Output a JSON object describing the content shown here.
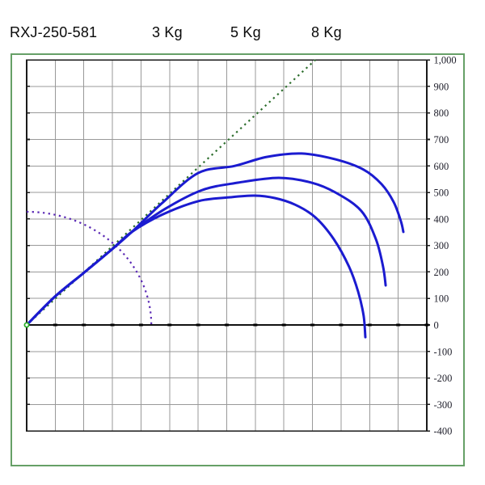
{
  "header": {
    "model": "RXJ-250-581",
    "legend": [
      "3 Kg",
      "5 Kg",
      "8 Kg"
    ]
  },
  "colors": {
    "curve_blue": "#1b1bd0",
    "sight_line_green": "#2d6e2d",
    "range_arc_purple": "#5b2ab5",
    "frame_green": "#66a067",
    "grid_gray": "#999999",
    "axis_dark": "#1a1a1a",
    "origin_marker_green": "#2eaf2e",
    "tick_label": "#1e1e2a"
  },
  "chart_data": {
    "type": "line",
    "title": "RXJ-250-581",
    "xlabel": "",
    "ylabel": "",
    "grid": true,
    "x_axis": {
      "min": 0,
      "max": 14,
      "step": 1,
      "labels_visible": false
    },
    "y_axis": {
      "min": -400,
      "max": 1000,
      "step": 100,
      "side": "right",
      "tick_labels": [
        "1,000",
        "900",
        "800",
        "700",
        "600",
        "500",
        "400",
        "300",
        "200",
        "100",
        "0",
        "-100",
        "-200",
        "-300",
        "-400"
      ]
    },
    "series": [
      {
        "name": "3 Kg",
        "color": "#1b1bd0",
        "points": [
          [
            0,
            0
          ],
          [
            0.99,
            107
          ],
          [
            1.98,
            195
          ],
          [
            2.97,
            284
          ],
          [
            3.68,
            351
          ],
          [
            4.72,
            458
          ],
          [
            6.0,
            573
          ],
          [
            7.27,
            600
          ],
          [
            8.4,
            634
          ],
          [
            9.62,
            647
          ],
          [
            10.8,
            625
          ],
          [
            11.79,
            586
          ],
          [
            12.42,
            531
          ],
          [
            12.84,
            464
          ],
          [
            13.09,
            393
          ],
          [
            13.18,
            351
          ]
        ]
      },
      {
        "name": "5 Kg",
        "color": "#1b1bd0",
        "points": [
          [
            0,
            0
          ],
          [
            0.99,
            107
          ],
          [
            1.98,
            195
          ],
          [
            2.97,
            284
          ],
          [
            3.68,
            351
          ],
          [
            4.86,
            439
          ],
          [
            6.14,
            509
          ],
          [
            7.41,
            537
          ],
          [
            8.82,
            555
          ],
          [
            9.96,
            537
          ],
          [
            10.8,
            500
          ],
          [
            11.71,
            430
          ],
          [
            12.22,
            323
          ],
          [
            12.47,
            220
          ],
          [
            12.56,
            149
          ]
        ]
      },
      {
        "name": "8 Kg",
        "color": "#1b1bd0",
        "points": [
          [
            0,
            0
          ],
          [
            0.99,
            107
          ],
          [
            1.98,
            195
          ],
          [
            2.97,
            284
          ],
          [
            3.68,
            351
          ],
          [
            4.72,
            415
          ],
          [
            6.0,
            467
          ],
          [
            7.13,
            482
          ],
          [
            7.98,
            488
          ],
          [
            8.68,
            479
          ],
          [
            9.39,
            454
          ],
          [
            10.1,
            406
          ],
          [
            10.75,
            323
          ],
          [
            11.28,
            220
          ],
          [
            11.6,
            125
          ],
          [
            11.79,
            34
          ],
          [
            11.85,
            -46
          ]
        ]
      }
    ],
    "reference_lines": [
      {
        "name": "sight-line",
        "type": "line",
        "style": "dotted",
        "color": "#2d6e2d",
        "points": [
          [
            0,
            0
          ],
          [
            10.1,
            1000
          ]
        ]
      },
      {
        "name": "range-arc",
        "type": "arc",
        "style": "dotted",
        "color": "#5b2ab5",
        "center": [
          0,
          0
        ],
        "rx": 4.36,
        "ry": 427
      }
    ],
    "origin_marker": {
      "x": 0,
      "y": 0
    }
  }
}
